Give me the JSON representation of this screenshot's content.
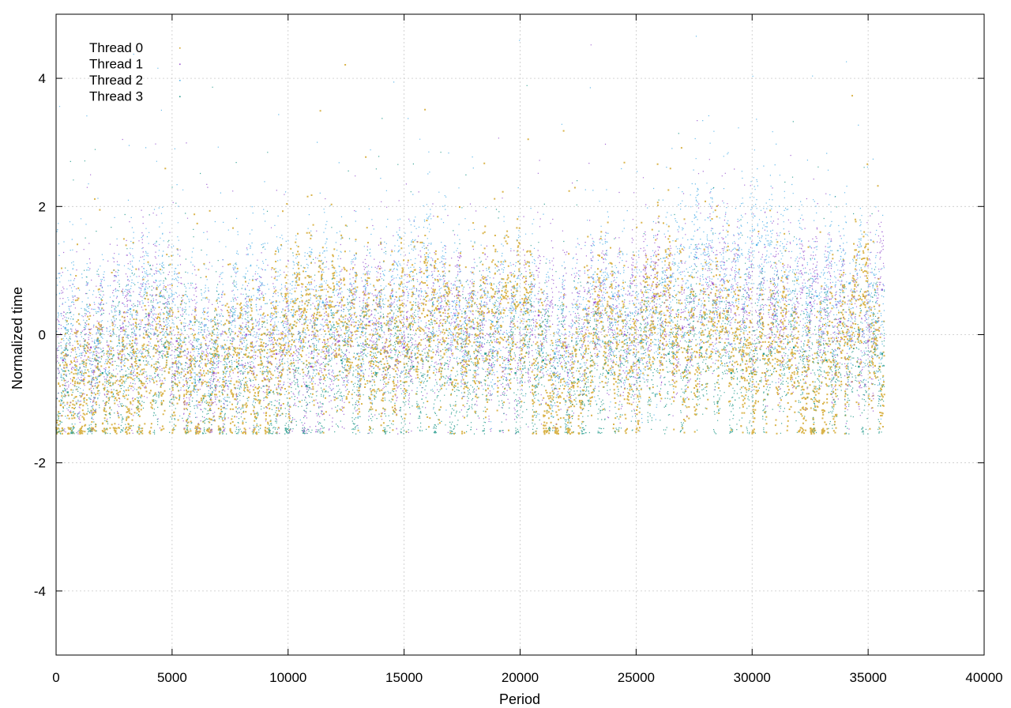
{
  "chart_data": {
    "type": "scatter",
    "xlabel": "Period",
    "ylabel": "Normalized time",
    "xlim": [
      0,
      40000
    ],
    "ylim": [
      -5,
      5
    ],
    "x_ticks": [
      "0",
      "5000",
      "10000",
      "15000",
      "20000",
      "25000",
      "30000",
      "35000",
      "40000"
    ],
    "x_tick_values": [
      0,
      5000,
      10000,
      15000,
      20000,
      25000,
      30000,
      35000,
      40000
    ],
    "y_ticks": [
      "4",
      "2",
      "0",
      "-2",
      "-4"
    ],
    "y_tick_values": [
      4,
      2,
      0,
      -2,
      -4
    ],
    "grid": true,
    "legend_position": "top-left",
    "series": [
      {
        "name": "Thread 0",
        "color": "#d4a72c",
        "marker": "small-square",
        "x": [
          200,
          1200,
          2400,
          3500,
          4800,
          6000,
          7500,
          9000,
          10500,
          11800,
          12500,
          14000,
          16000,
          17500,
          19000,
          20200,
          21200,
          22300,
          23500,
          24800,
          26000,
          27200,
          28600,
          30000,
          31400,
          32300,
          33500,
          34800,
          35500
        ],
        "y": [
          -1.1,
          -0.7,
          -0.9,
          -0.6,
          -0.3,
          -0.8,
          -0.5,
          -0.7,
          0.4,
          0.2,
          0.1,
          -0.3,
          0.3,
          -0.2,
          0.2,
          0.5,
          -1.1,
          -0.8,
          0.2,
          -0.5,
          0.6,
          -0.4,
          0.3,
          -0.6,
          0.1,
          -1.0,
          -0.4,
          0.6,
          -0.5
        ]
      },
      {
        "name": "Thread 1",
        "color": "#9b59d0",
        "marker": "dot",
        "x": [
          300,
          1500,
          2800,
          4000,
          5200,
          6800,
          8200,
          9500,
          11000,
          12200,
          13500,
          15000,
          16500,
          18000,
          19500,
          20800,
          22000,
          23200,
          24500,
          25800,
          27000,
          28300,
          29600,
          31000,
          32500,
          33800,
          35000,
          35600
        ],
        "y": [
          -0.4,
          -0.2,
          0.1,
          0.3,
          -0.1,
          -0.6,
          0.0,
          -0.3,
          -0.5,
          -0.1,
          0.2,
          -0.2,
          0.4,
          0.1,
          -0.4,
          0.3,
          -0.2,
          0.5,
          0.0,
          0.6,
          0.1,
          0.8,
          0.4,
          0.3,
          0.5,
          0.2,
          -0.1,
          0.7
        ]
      },
      {
        "name": "Thread 2",
        "color": "#56b4e9",
        "marker": "dot",
        "x": [
          400,
          1800,
          3200,
          4500,
          5800,
          7200,
          8700,
          10200,
          11500,
          13000,
          14500,
          16000,
          17200,
          18800,
          20000,
          21500,
          22800,
          24000,
          25200,
          26500,
          27600,
          29000,
          30200,
          31500,
          32800,
          34200,
          35400
        ],
        "y": [
          0.1,
          -0.1,
          0.4,
          0.6,
          0.2,
          -0.2,
          0.7,
          0.3,
          0.5,
          0.1,
          0.6,
          0.9,
          0.3,
          0.2,
          0.5,
          -0.3,
          0.4,
          0.6,
          -0.1,
          0.9,
          1.2,
          0.7,
          1.4,
          0.9,
          0.6,
          0.8,
          0.2
        ]
      },
      {
        "name": "Thread 3",
        "color": "#2a9d8f",
        "marker": "dot",
        "x": [
          500,
          2000,
          3600,
          4700,
          6200,
          7800,
          9200,
          10800,
          12300,
          13800,
          15400,
          17000,
          18500,
          19800,
          21000,
          22500,
          23800,
          25100,
          26400,
          27800,
          29100,
          30500,
          31800,
          33200,
          34600,
          35600
        ],
        "y": [
          -0.9,
          -0.6,
          -0.4,
          -0.2,
          -0.7,
          -0.5,
          -0.9,
          -0.8,
          -0.4,
          -0.6,
          -0.5,
          -0.7,
          -0.3,
          -0.6,
          -0.4,
          -0.7,
          -0.6,
          -0.4,
          -0.3,
          -0.2,
          -0.6,
          -0.3,
          -0.2,
          -0.4,
          -0.5,
          -0.3
        ]
      }
    ]
  }
}
